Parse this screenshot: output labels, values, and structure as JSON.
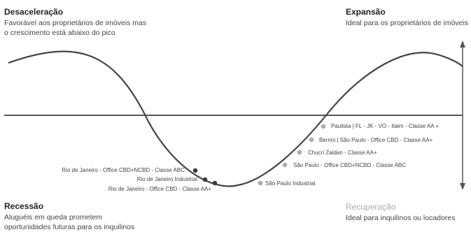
{
  "phases": {
    "desaceleracao": {
      "title": "Desaceleração",
      "line1": "Favorável aos proprietários de imóveis mas",
      "line2": "o crescimento está abaixo do pico"
    },
    "expansao": {
      "title": "Expansão",
      "line1": "Ideal para os proprietários de imóveis"
    },
    "recessao": {
      "title": "Recessão",
      "line1": "Aluguéis em queda prometem",
      "line2": "oportunidades futuras para os inquilinos"
    },
    "recuperacao": {
      "title": "Recuperação",
      "line1": "Ideal para inquilinos ou locadores"
    }
  },
  "markets": [
    "Rio de Janeiro - Office CBD+NCBD - Classe ABC",
    "Rio de Janeiro Industrial",
    "Rio de Janeiro - Office CBD - Classe AA+",
    "São Paulo Industrial",
    "São Paulo - Office CBD+NCBD - Classe ABC",
    "Chucri Zaidan - Classe AA+",
    "Berrini | São Paulo - Office CBD - Classe AA+",
    "Paulista | FL - JK - VO - Itaim - Classe AA +"
  ],
  "colors": {
    "curve": "#444444",
    "axis": "#555555",
    "dark_point": "#3a3a3a",
    "light_point": "#aaaaaa"
  }
}
